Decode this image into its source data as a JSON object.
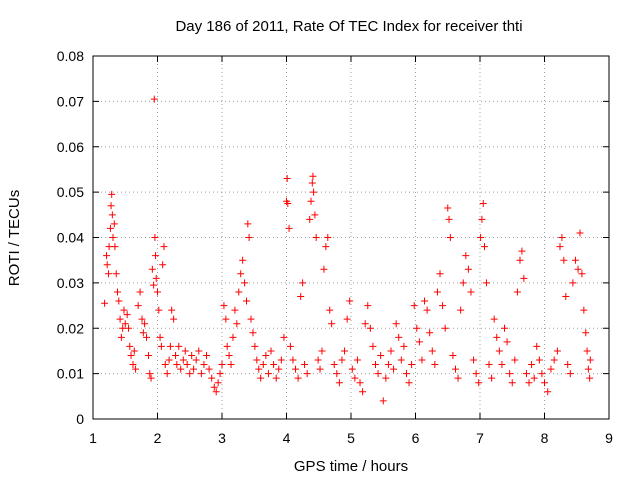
{
  "chart_data": {
    "type": "scatter",
    "title": "Day 186 of 2011, Rate Of TEC Index for receiver thti",
    "xlabel": "GPS time / hours",
    "ylabel": "ROTI / TECUs",
    "xlim": [
      1,
      9
    ],
    "ylim": [
      0,
      0.08
    ],
    "xticks": [
      1,
      2,
      3,
      4,
      5,
      6,
      7,
      8,
      9
    ],
    "yticks": [
      0,
      0.01,
      0.02,
      0.03,
      0.04,
      0.05,
      0.06,
      0.07,
      0.08
    ],
    "xtick_labels": [
      "1",
      "2",
      "3",
      "4",
      "5",
      "6",
      "7",
      "8",
      "9"
    ],
    "ytick_labels": [
      "0",
      "0.01",
      "0.02",
      "0.03",
      "0.04",
      "0.05",
      "0.06",
      "0.07",
      "0.08"
    ],
    "grid": true,
    "marker": "+",
    "color": "#ff0000",
    "series": [
      {
        "name": "ROTI",
        "points": [
          [
            1.18,
            0.0255
          ],
          [
            1.21,
            0.036
          ],
          [
            1.22,
            0.034
          ],
          [
            1.24,
            0.032
          ],
          [
            1.25,
            0.038
          ],
          [
            1.27,
            0.042
          ],
          [
            1.28,
            0.047
          ],
          [
            1.29,
            0.0495
          ],
          [
            1.3,
            0.045
          ],
          [
            1.31,
            0.04
          ],
          [
            1.33,
            0.043
          ],
          [
            1.34,
            0.038
          ],
          [
            1.36,
            0.032
          ],
          [
            1.38,
            0.028
          ],
          [
            1.4,
            0.026
          ],
          [
            1.42,
            0.022
          ],
          [
            1.44,
            0.018
          ],
          [
            1.46,
            0.02
          ],
          [
            1.48,
            0.024
          ],
          [
            1.5,
            0.021
          ],
          [
            1.53,
            0.023
          ],
          [
            1.55,
            0.02
          ],
          [
            1.57,
            0.016
          ],
          [
            1.59,
            0.014
          ],
          [
            1.62,
            0.012
          ],
          [
            1.64,
            0.015
          ],
          [
            1.66,
            0.011
          ],
          [
            1.7,
            0.025
          ],
          [
            1.73,
            0.028
          ],
          [
            1.76,
            0.022
          ],
          [
            1.78,
            0.019
          ],
          [
            1.8,
            0.021
          ],
          [
            1.83,
            0.018
          ],
          [
            1.86,
            0.014
          ],
          [
            1.88,
            0.01
          ],
          [
            1.9,
            0.009
          ],
          [
            1.92,
            0.033
          ],
          [
            1.94,
            0.0295
          ],
          [
            1.95,
            0.0705
          ],
          [
            1.96,
            0.04
          ],
          [
            1.97,
            0.036
          ],
          [
            1.98,
            0.031
          ],
          [
            2.0,
            0.028
          ],
          [
            2.02,
            0.024
          ],
          [
            2.04,
            0.018
          ],
          [
            2.06,
            0.016
          ],
          [
            2.08,
            0.034
          ],
          [
            2.1,
            0.038
          ],
          [
            2.12,
            0.012
          ],
          [
            2.15,
            0.01
          ],
          [
            2.18,
            0.013
          ],
          [
            2.2,
            0.016
          ],
          [
            2.22,
            0.024
          ],
          [
            2.25,
            0.022
          ],
          [
            2.28,
            0.014
          ],
          [
            2.3,
            0.012
          ],
          [
            2.33,
            0.016
          ],
          [
            2.36,
            0.011
          ],
          [
            2.4,
            0.013
          ],
          [
            2.43,
            0.015
          ],
          [
            2.46,
            0.012
          ],
          [
            2.5,
            0.01
          ],
          [
            2.53,
            0.014
          ],
          [
            2.56,
            0.011
          ],
          [
            2.6,
            0.013
          ],
          [
            2.64,
            0.015
          ],
          [
            2.68,
            0.01
          ],
          [
            2.72,
            0.012
          ],
          [
            2.76,
            0.014
          ],
          [
            2.8,
            0.011
          ],
          [
            2.84,
            0.009
          ],
          [
            2.88,
            0.007
          ],
          [
            2.91,
            0.006
          ],
          [
            2.94,
            0.008
          ],
          [
            2.97,
            0.01
          ],
          [
            3.0,
            0.012
          ],
          [
            3.03,
            0.025
          ],
          [
            3.06,
            0.022
          ],
          [
            3.08,
            0.016
          ],
          [
            3.11,
            0.014
          ],
          [
            3.14,
            0.012
          ],
          [
            3.17,
            0.018
          ],
          [
            3.2,
            0.024
          ],
          [
            3.23,
            0.021
          ],
          [
            3.26,
            0.028
          ],
          [
            3.29,
            0.032
          ],
          [
            3.32,
            0.035
          ],
          [
            3.35,
            0.03
          ],
          [
            3.38,
            0.026
          ],
          [
            3.4,
            0.043
          ],
          [
            3.42,
            0.04
          ],
          [
            3.45,
            0.022
          ],
          [
            3.48,
            0.019
          ],
          [
            3.51,
            0.016
          ],
          [
            3.54,
            0.013
          ],
          [
            3.57,
            0.011
          ],
          [
            3.6,
            0.009
          ],
          [
            3.64,
            0.012
          ],
          [
            3.68,
            0.014
          ],
          [
            3.72,
            0.01
          ],
          [
            3.76,
            0.015
          ],
          [
            3.8,
            0.012
          ],
          [
            3.84,
            0.009
          ],
          [
            3.88,
            0.011
          ],
          [
            3.92,
            0.013
          ],
          [
            3.96,
            0.018
          ],
          [
            4.0,
            0.048
          ],
          [
            4.01,
            0.053
          ],
          [
            4.02,
            0.0475
          ],
          [
            4.04,
            0.042
          ],
          [
            4.06,
            0.016
          ],
          [
            4.1,
            0.013
          ],
          [
            4.14,
            0.011
          ],
          [
            4.18,
            0.009
          ],
          [
            4.22,
            0.027
          ],
          [
            4.25,
            0.03
          ],
          [
            4.28,
            0.012
          ],
          [
            4.32,
            0.01
          ],
          [
            4.36,
            0.044
          ],
          [
            4.38,
            0.048
          ],
          [
            4.4,
            0.052
          ],
          [
            4.41,
            0.0535
          ],
          [
            4.42,
            0.05
          ],
          [
            4.44,
            0.045
          ],
          [
            4.46,
            0.04
          ],
          [
            4.49,
            0.013
          ],
          [
            4.52,
            0.011
          ],
          [
            4.55,
            0.015
          ],
          [
            4.58,
            0.033
          ],
          [
            4.61,
            0.038
          ],
          [
            4.64,
            0.04
          ],
          [
            4.67,
            0.024
          ],
          [
            4.7,
            0.021
          ],
          [
            4.74,
            0.012
          ],
          [
            4.78,
            0.01
          ],
          [
            4.82,
            0.008
          ],
          [
            4.86,
            0.013
          ],
          [
            4.9,
            0.015
          ],
          [
            4.94,
            0.022
          ],
          [
            4.98,
            0.026
          ],
          [
            5.02,
            0.011
          ],
          [
            5.06,
            0.009
          ],
          [
            5.1,
            0.013
          ],
          [
            5.14,
            0.008
          ],
          [
            5.18,
            0.006
          ],
          [
            5.22,
            0.021
          ],
          [
            5.26,
            0.025
          ],
          [
            5.3,
            0.02
          ],
          [
            5.34,
            0.016
          ],
          [
            5.38,
            0.012
          ],
          [
            5.42,
            0.01
          ],
          [
            5.46,
            0.014
          ],
          [
            5.5,
            0.004
          ],
          [
            5.54,
            0.009
          ],
          [
            5.58,
            0.012
          ],
          [
            5.62,
            0.015
          ],
          [
            5.66,
            0.011
          ],
          [
            5.7,
            0.021
          ],
          [
            5.74,
            0.018
          ],
          [
            5.78,
            0.013
          ],
          [
            5.82,
            0.016
          ],
          [
            5.86,
            0.01
          ],
          [
            5.9,
            0.008
          ],
          [
            5.94,
            0.012
          ],
          [
            5.98,
            0.025
          ],
          [
            6.02,
            0.02
          ],
          [
            6.06,
            0.017
          ],
          [
            6.1,
            0.013
          ],
          [
            6.14,
            0.026
          ],
          [
            6.18,
            0.024
          ],
          [
            6.22,
            0.019
          ],
          [
            6.26,
            0.015
          ],
          [
            6.3,
            0.012
          ],
          [
            6.34,
            0.028
          ],
          [
            6.38,
            0.032
          ],
          [
            6.42,
            0.025
          ],
          [
            6.46,
            0.02
          ],
          [
            6.5,
            0.0465
          ],
          [
            6.52,
            0.044
          ],
          [
            6.54,
            0.04
          ],
          [
            6.58,
            0.014
          ],
          [
            6.62,
            0.011
          ],
          [
            6.66,
            0.009
          ],
          [
            6.7,
            0.024
          ],
          [
            6.74,
            0.03
          ],
          [
            6.78,
            0.036
          ],
          [
            6.82,
            0.033
          ],
          [
            6.86,
            0.028
          ],
          [
            6.9,
            0.013
          ],
          [
            6.94,
            0.01
          ],
          [
            6.98,
            0.008
          ],
          [
            7.01,
            0.04
          ],
          [
            7.03,
            0.044
          ],
          [
            7.05,
            0.0475
          ],
          [
            7.07,
            0.038
          ],
          [
            7.1,
            0.03
          ],
          [
            7.14,
            0.012
          ],
          [
            7.18,
            0.009
          ],
          [
            7.22,
            0.022
          ],
          [
            7.26,
            0.018
          ],
          [
            7.3,
            0.015
          ],
          [
            7.34,
            0.012
          ],
          [
            7.38,
            0.02
          ],
          [
            7.42,
            0.017
          ],
          [
            7.46,
            0.01
          ],
          [
            7.5,
            0.008
          ],
          [
            7.54,
            0.013
          ],
          [
            7.58,
            0.028
          ],
          [
            7.62,
            0.035
          ],
          [
            7.65,
            0.037
          ],
          [
            7.68,
            0.031
          ],
          [
            7.72,
            0.01
          ],
          [
            7.76,
            0.008
          ],
          [
            7.8,
            0.012
          ],
          [
            7.84,
            0.009
          ],
          [
            7.88,
            0.016
          ],
          [
            7.92,
            0.013
          ],
          [
            7.96,
            0.01
          ],
          [
            8.0,
            0.008
          ],
          [
            8.05,
            0.006
          ],
          [
            8.1,
            0.011
          ],
          [
            8.15,
            0.013
          ],
          [
            8.2,
            0.015
          ],
          [
            8.24,
            0.038
          ],
          [
            8.27,
            0.04
          ],
          [
            8.3,
            0.035
          ],
          [
            8.33,
            0.027
          ],
          [
            8.36,
            0.012
          ],
          [
            8.4,
            0.01
          ],
          [
            8.44,
            0.03
          ],
          [
            8.48,
            0.035
          ],
          [
            8.52,
            0.033
          ],
          [
            8.55,
            0.041
          ],
          [
            8.58,
            0.032
          ],
          [
            8.61,
            0.024
          ],
          [
            8.64,
            0.019
          ],
          [
            8.66,
            0.015
          ],
          [
            8.68,
            0.011
          ],
          [
            8.7,
            0.009
          ],
          [
            8.71,
            0.013
          ]
        ]
      }
    ]
  }
}
